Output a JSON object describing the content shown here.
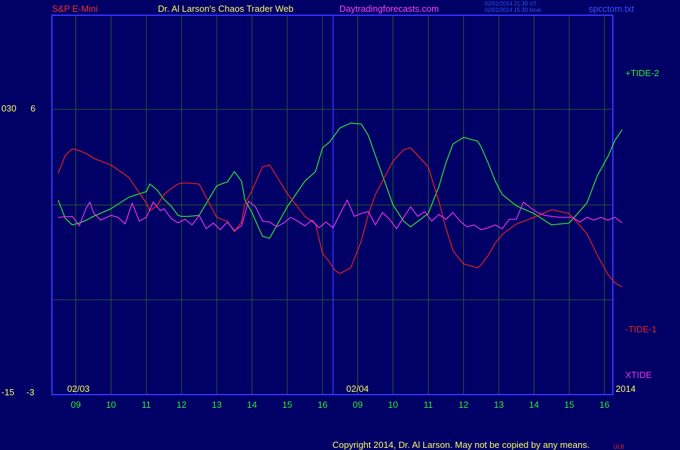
{
  "header": {
    "instrument": "S&P E-Mini",
    "author": "Dr. Al Larson's Chaos Trader Web",
    "site": "Daytradingforecasts.com",
    "time_ut": "02/01/2014 21:30 UT",
    "time_local": "02/01/2014 15:30 local",
    "file": "spcctom.txt"
  },
  "footer": {
    "copyright": "Copyright 2014, Dr. Al Larson. May not be copied by any means.",
    "mark": "ULB"
  },
  "colors": {
    "background": "#000066",
    "frame": "#3333ff",
    "grid": "#2f5a2f",
    "tide_plus": "#33ee33",
    "tide_minus": "#ee2222",
    "xtide": "#ee33ee",
    "title_red": "#ee3333",
    "title_yellow": "#ffff66",
    "title_magenta": "#ff44ff",
    "axis_green": "#33ee33"
  },
  "chart_data": {
    "type": "line",
    "left_axis": {
      "upper_labels": [
        "030",
        "6"
      ],
      "lower_labels": [
        "-15",
        "-3"
      ]
    },
    "date_labels": [
      "02/03",
      "02/04"
    ],
    "year_label": "2014",
    "x_ticks": [
      "09",
      "10",
      "11",
      "12",
      "13",
      "14",
      "15",
      "16",
      "09",
      "10",
      "11",
      "12",
      "13",
      "14",
      "15",
      "16"
    ],
    "series": [
      {
        "name": "+TIDE-2",
        "color": "#33ee33",
        "x": [
          0,
          0.2,
          0.4,
          0.6,
          0.8,
          1.0,
          1.5,
          2.0,
          2.5,
          2.6,
          2.8,
          3.0,
          3.2,
          3.4,
          3.5,
          3.7,
          4.0,
          4.5,
          4.7,
          4.8,
          5.0,
          5.2,
          5.3,
          5.5,
          5.7,
          5.8,
          6.0,
          6.5,
          7.0,
          7.3,
          7.5,
          7.7,
          7.8,
          7.9,
          8.0,
          8.3,
          8.6,
          8.8,
          9.0,
          9.5,
          9.8,
          10.0,
          10.5,
          10.8,
          11.0,
          11.2,
          11.5,
          11.9,
          12.0,
          12.2,
          12.4,
          12.6,
          13.0,
          13.5,
          14.0,
          14.5,
          15.0,
          15.3,
          15.6,
          15.8,
          16.0
        ],
        "values": [
          0.5,
          -1.4,
          -2.1,
          -1.9,
          -1.6,
          -1.2,
          -0.4,
          0.8,
          1.4,
          2.2,
          1.6,
          0.6,
          -0.1,
          -1.1,
          -1.2,
          -1.2,
          -1.1,
          2.0,
          2.3,
          2.4,
          3.5,
          2.5,
          0.5,
          -0.8,
          -2.5,
          -3.3,
          -3.5,
          -0.2,
          2.5,
          3.5,
          6.0,
          6.6,
          7.1,
          7.6,
          8.1,
          8.6,
          8.5,
          7.3,
          5.2,
          0.0,
          -1.7,
          -2.3,
          -0.9,
          1.9,
          4.4,
          6.4,
          7.1,
          6.7,
          6.1,
          4.4,
          2.5,
          1.1,
          -0.1,
          -0.9,
          -2.1,
          -1.9,
          0.2,
          3.1,
          5.1,
          6.8,
          7.9
        ]
      },
      {
        "name": "-TIDE-1",
        "color": "#ee2222",
        "x": [
          0,
          0.2,
          0.4,
          0.6,
          0.8,
          1.0,
          1.5,
          2.0,
          2.5,
          2.6,
          2.8,
          3.0,
          3.2,
          3.4,
          3.5,
          3.7,
          4.0,
          4.5,
          4.7,
          4.8,
          5.0,
          5.2,
          5.3,
          5.5,
          5.7,
          5.8,
          6.0,
          6.5,
          7.0,
          7.3,
          7.5,
          7.7,
          7.8,
          7.9,
          8.0,
          8.3,
          8.6,
          8.8,
          9.0,
          9.5,
          9.8,
          10.0,
          10.5,
          10.8,
          11.0,
          11.2,
          11.5,
          11.9,
          12.0,
          12.2,
          12.4,
          12.6,
          13.0,
          13.5,
          14.0,
          14.5,
          15.0,
          15.3,
          15.6,
          15.8,
          16.0
        ],
        "values": [
          3.3,
          5.2,
          5.9,
          5.7,
          5.4,
          4.9,
          4.2,
          2.9,
          0.2,
          -0.6,
          -0.1,
          1.1,
          1.7,
          2.2,
          2.3,
          2.3,
          2.2,
          -1.3,
          -1.6,
          -1.7,
          -2.8,
          -1.8,
          0.2,
          1.5,
          3.2,
          4.0,
          4.2,
          1.2,
          -1.2,
          -2.0,
          -5.1,
          -6.0,
          -6.6,
          -7.0,
          -7.2,
          -6.6,
          -3.8,
          -1.0,
          1.1,
          4.6,
          5.8,
          6.0,
          4.0,
          0.4,
          -2.4,
          -4.8,
          -6.2,
          -6.6,
          -6.3,
          -5.3,
          -4.0,
          -3.1,
          -2.0,
          -1.3,
          -0.5,
          -0.9,
          -3.0,
          -5.3,
          -7.3,
          -8.2,
          -8.6
        ]
      },
      {
        "name": "XTIDE",
        "color": "#ee33ee",
        "x": [
          0,
          0.4,
          0.6,
          0.8,
          0.9,
          1.0,
          1.2,
          1.5,
          1.7,
          1.9,
          2.1,
          2.3,
          2.5,
          2.7,
          2.9,
          3.0,
          3.2,
          3.4,
          3.6,
          3.8,
          4.0,
          4.2,
          4.4,
          4.6,
          4.8,
          5.0,
          5.2,
          5.4,
          5.6,
          5.8,
          6.0,
          6.2,
          6.4,
          6.6,
          6.8,
          7.0,
          7.2,
          7.4,
          7.6,
          7.8,
          8.0,
          8.2,
          8.4,
          8.6,
          8.8,
          9.0,
          9.2,
          9.4,
          9.6,
          9.8,
          10.0,
          10.2,
          10.4,
          10.6,
          10.8,
          11.0,
          11.2,
          11.4,
          11.6,
          11.8,
          12.0,
          12.2,
          12.4,
          12.6,
          12.8,
          13.0,
          13.2,
          13.4,
          13.6,
          13.8,
          14.0,
          14.2,
          14.4,
          14.6,
          14.8,
          15.0,
          15.2,
          15.4,
          15.6,
          15.8,
          16.0
        ],
        "values": [
          -1.3,
          -1.2,
          -2.2,
          -0.3,
          0.3,
          -0.8,
          -1.6,
          -1.1,
          -1.3,
          -2.0,
          0.2,
          -1.7,
          -1.3,
          0.3,
          -0.6,
          -0.4,
          -1.4,
          -1.9,
          -1.5,
          -2.1,
          -1.1,
          -2.5,
          -1.9,
          -2.6,
          -1.8,
          -2.7,
          -2.2,
          0.4,
          -0.2,
          -1.7,
          -1.8,
          -2.3,
          -1.9,
          -1.3,
          -1.7,
          -2.2,
          -1.6,
          -2.4,
          -1.8,
          -2.4,
          -0.9,
          0.5,
          -1.2,
          -0.9,
          -0.7,
          -2.1,
          -0.8,
          -1.5,
          -2.5,
          -1.3,
          -0.2,
          -1.2,
          -0.7,
          -1.7,
          -1.0,
          -1.5,
          -0.8,
          -1.7,
          -2.3,
          -2.1,
          -2.6,
          -2.4,
          -2.1,
          -2.5,
          -1.5,
          -1.5,
          0.3,
          -0.3,
          -0.8,
          -1.1,
          -1.2,
          -1.3,
          -1.3,
          -1.3,
          -1.8,
          -1.3,
          -1.6,
          -1.3,
          -1.6,
          -1.3,
          -1.9
        ]
      }
    ],
    "grid": true
  }
}
